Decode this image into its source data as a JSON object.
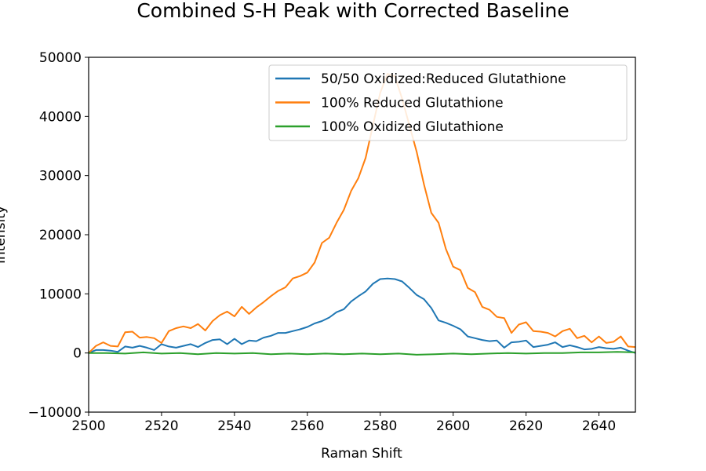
{
  "chart_data": {
    "type": "line",
    "title": "Combined S-H Peak with Corrected Baseline",
    "xlabel": "Raman Shift",
    "ylabel": "Intensity",
    "xlim": [
      2500,
      2650
    ],
    "ylim": [
      -10000,
      50000
    ],
    "xticks": [
      2500,
      2520,
      2540,
      2560,
      2580,
      2600,
      2620,
      2640
    ],
    "yticks": [
      -10000,
      0,
      10000,
      20000,
      30000,
      40000,
      50000
    ],
    "grid": false,
    "legend_position": "top-right",
    "series": [
      {
        "name": "50/50 Oxidized:Reduced Glutathione",
        "color": "#1f77b4",
        "points": [
          [
            2500,
            0
          ],
          [
            2502,
            500
          ],
          [
            2504,
            500
          ],
          [
            2506,
            400
          ],
          [
            2508,
            200
          ],
          [
            2510,
            1100
          ],
          [
            2512,
            900
          ],
          [
            2514,
            1200
          ],
          [
            2516,
            900
          ],
          [
            2518,
            500
          ],
          [
            2520,
            1500
          ],
          [
            2522,
            1100
          ],
          [
            2524,
            900
          ],
          [
            2526,
            1200
          ],
          [
            2528,
            1500
          ],
          [
            2530,
            1000
          ],
          [
            2532,
            1700
          ],
          [
            2534,
            2200
          ],
          [
            2536,
            2300
          ],
          [
            2538,
            1500
          ],
          [
            2540,
            2400
          ],
          [
            2542,
            1500
          ],
          [
            2544,
            2100
          ],
          [
            2546,
            2000
          ],
          [
            2548,
            2600
          ],
          [
            2550,
            2900
          ],
          [
            2552,
            3400
          ],
          [
            2554,
            3400
          ],
          [
            2556,
            3700
          ],
          [
            2558,
            4000
          ],
          [
            2560,
            4400
          ],
          [
            2562,
            5000
          ],
          [
            2564,
            5400
          ],
          [
            2566,
            6000
          ],
          [
            2568,
            6900
          ],
          [
            2570,
            7400
          ],
          [
            2572,
            8700
          ],
          [
            2574,
            9600
          ],
          [
            2576,
            10400
          ],
          [
            2578,
            11700
          ],
          [
            2580,
            12500
          ],
          [
            2582,
            12600
          ],
          [
            2584,
            12500
          ],
          [
            2586,
            12100
          ],
          [
            2588,
            11000
          ],
          [
            2590,
            9800
          ],
          [
            2592,
            9100
          ],
          [
            2594,
            7600
          ],
          [
            2596,
            5500
          ],
          [
            2598,
            5100
          ],
          [
            2600,
            4600
          ],
          [
            2602,
            4000
          ],
          [
            2604,
            2800
          ],
          [
            2606,
            2500
          ],
          [
            2608,
            2200
          ],
          [
            2610,
            2000
          ],
          [
            2612,
            2100
          ],
          [
            2614,
            900
          ],
          [
            2616,
            1800
          ],
          [
            2618,
            1900
          ],
          [
            2620,
            2100
          ],
          [
            2622,
            1000
          ],
          [
            2624,
            1200
          ],
          [
            2626,
            1400
          ],
          [
            2628,
            1800
          ],
          [
            2630,
            1000
          ],
          [
            2632,
            1300
          ],
          [
            2634,
            1000
          ],
          [
            2636,
            600
          ],
          [
            2638,
            700
          ],
          [
            2640,
            1000
          ],
          [
            2642,
            800
          ],
          [
            2644,
            700
          ],
          [
            2646,
            900
          ],
          [
            2648,
            400
          ],
          [
            2650,
            0
          ]
        ]
      },
      {
        "name": "100% Reduced Glutathione",
        "color": "#ff7f0e",
        "points": [
          [
            2500,
            0
          ],
          [
            2502,
            1200
          ],
          [
            2504,
            1800
          ],
          [
            2506,
            1200
          ],
          [
            2508,
            1100
          ],
          [
            2510,
            3500
          ],
          [
            2512,
            3600
          ],
          [
            2514,
            2600
          ],
          [
            2516,
            2700
          ],
          [
            2518,
            2500
          ],
          [
            2520,
            1700
          ],
          [
            2522,
            3700
          ],
          [
            2524,
            4200
          ],
          [
            2526,
            4500
          ],
          [
            2528,
            4200
          ],
          [
            2530,
            4900
          ],
          [
            2532,
            3800
          ],
          [
            2534,
            5400
          ],
          [
            2536,
            6400
          ],
          [
            2538,
            7000
          ],
          [
            2540,
            6200
          ],
          [
            2542,
            7800
          ],
          [
            2544,
            6600
          ],
          [
            2546,
            7700
          ],
          [
            2548,
            8600
          ],
          [
            2550,
            9600
          ],
          [
            2552,
            10500
          ],
          [
            2554,
            11100
          ],
          [
            2556,
            12600
          ],
          [
            2558,
            13000
          ],
          [
            2560,
            13600
          ],
          [
            2562,
            15300
          ],
          [
            2564,
            18600
          ],
          [
            2566,
            19500
          ],
          [
            2568,
            22000
          ],
          [
            2570,
            24200
          ],
          [
            2572,
            27400
          ],
          [
            2574,
            29600
          ],
          [
            2576,
            33000
          ],
          [
            2578,
            38500
          ],
          [
            2580,
            44000
          ],
          [
            2582,
            47200
          ],
          [
            2584,
            46800
          ],
          [
            2586,
            43000
          ],
          [
            2588,
            38500
          ],
          [
            2590,
            34000
          ],
          [
            2592,
            28500
          ],
          [
            2594,
            23700
          ],
          [
            2596,
            22000
          ],
          [
            2598,
            17600
          ],
          [
            2600,
            14600
          ],
          [
            2602,
            14000
          ],
          [
            2604,
            11000
          ],
          [
            2606,
            10300
          ],
          [
            2608,
            7800
          ],
          [
            2610,
            7300
          ],
          [
            2612,
            6100
          ],
          [
            2614,
            5900
          ],
          [
            2616,
            3400
          ],
          [
            2618,
            4800
          ],
          [
            2620,
            5200
          ],
          [
            2622,
            3700
          ],
          [
            2624,
            3600
          ],
          [
            2626,
            3400
          ],
          [
            2628,
            2800
          ],
          [
            2630,
            3700
          ],
          [
            2632,
            4100
          ],
          [
            2634,
            2500
          ],
          [
            2636,
            2900
          ],
          [
            2638,
            1800
          ],
          [
            2640,
            2800
          ],
          [
            2642,
            1700
          ],
          [
            2644,
            1900
          ],
          [
            2646,
            2800
          ],
          [
            2648,
            1100
          ],
          [
            2650,
            1000
          ]
        ]
      },
      {
        "name": "100% Oxidized Glutathione",
        "color": "#2ca02c",
        "points": [
          [
            2500,
            0
          ],
          [
            2505,
            0
          ],
          [
            2510,
            -100
          ],
          [
            2515,
            100
          ],
          [
            2520,
            -100
          ],
          [
            2525,
            0
          ],
          [
            2530,
            -200
          ],
          [
            2535,
            0
          ],
          [
            2540,
            -100
          ],
          [
            2545,
            0
          ],
          [
            2550,
            -200
          ],
          [
            2555,
            -100
          ],
          [
            2560,
            -200
          ],
          [
            2565,
            -100
          ],
          [
            2570,
            -200
          ],
          [
            2575,
            -100
          ],
          [
            2580,
            -200
          ],
          [
            2585,
            -100
          ],
          [
            2590,
            -300
          ],
          [
            2595,
            -200
          ],
          [
            2600,
            -100
          ],
          [
            2605,
            -200
          ],
          [
            2610,
            -100
          ],
          [
            2615,
            0
          ],
          [
            2620,
            -100
          ],
          [
            2625,
            0
          ],
          [
            2630,
            0
          ],
          [
            2635,
            100
          ],
          [
            2640,
            100
          ],
          [
            2645,
            200
          ],
          [
            2650,
            100
          ]
        ]
      }
    ]
  }
}
